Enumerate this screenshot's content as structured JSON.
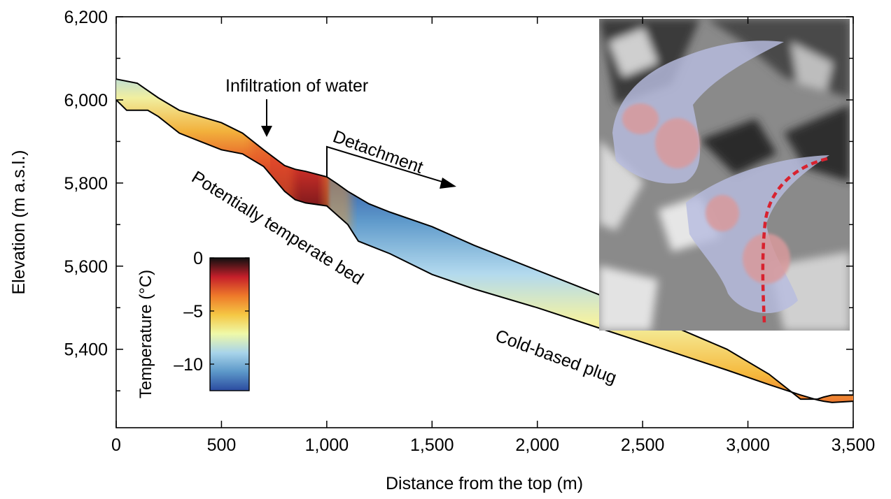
{
  "chart_data": {
    "type": "area",
    "title": "",
    "xlabel": "Distance from the top (m)",
    "ylabel": "Elevation (m a.s.l.)",
    "xlim": [
      0,
      3500
    ],
    "ylim": [
      5260,
      6200
    ],
    "x_ticks": [
      0,
      500,
      1000,
      1500,
      2000,
      2500,
      3000,
      3500
    ],
    "x_tick_labels": [
      "0",
      "500",
      "1,000",
      "1,500",
      "2,000",
      "2,500",
      "3,000",
      "3,500"
    ],
    "y_ticks": [
      5400,
      5600,
      5800,
      6000,
      6200
    ],
    "y_tick_labels": [
      "5,400",
      "5,600",
      "5,800",
      "6,000",
      "6,200"
    ],
    "grid": false,
    "series": [
      {
        "role": "glacier-surface",
        "x": [
          0,
          100,
          200,
          300,
          400,
          500,
          600,
          700,
          800,
          850,
          900,
          1000,
          1050,
          1100,
          1200,
          1300,
          1500,
          1700,
          2000,
          2300,
          2600,
          2900,
          3100,
          3250,
          3330,
          3360,
          3400,
          3500
        ],
        "y": [
          6050,
          6040,
          6005,
          5975,
          5960,
          5945,
          5920,
          5880,
          5842,
          5833,
          5828,
          5815,
          5798,
          5780,
          5750,
          5730,
          5695,
          5650,
          5590,
          5530,
          5465,
          5400,
          5340,
          5280,
          5280,
          5285,
          5290,
          5290
        ]
      },
      {
        "role": "glacier-bed",
        "x": [
          0,
          50,
          150,
          200,
          300,
          400,
          500,
          600,
          700,
          800,
          850,
          900,
          1000,
          1100,
          1150,
          1200,
          1300,
          1500,
          1700,
          2000,
          2300,
          2600,
          2900,
          3100,
          3250,
          3330,
          3360,
          3400,
          3500
        ],
        "y": [
          6000,
          5975,
          5975,
          5960,
          5920,
          5900,
          5880,
          5870,
          5840,
          5780,
          5760,
          5752,
          5745,
          5700,
          5660,
          5650,
          5630,
          5580,
          5545,
          5500,
          5450,
          5400,
          5350,
          5315,
          5290,
          5278,
          5275,
          5272,
          5275
        ]
      }
    ],
    "colorbar": {
      "label": "Temperature (°C)",
      "range": [
        -12.5,
        0
      ],
      "ticks": [
        0,
        -5,
        -10
      ],
      "tick_labels": [
        "0",
        "–5",
        "–10"
      ],
      "colors": [
        "#101010",
        "#c51f2a",
        "#ee7a2a",
        "#f5c744",
        "#eff9a8",
        "#a8d4ea",
        "#5c98c9",
        "#2b4ba0"
      ]
    },
    "annotations": {
      "infiltration": "Infiltration of water",
      "detachment": "Detachment",
      "temperate_bed": "Potentially temperate bed",
      "cold_plug": "Cold-based plug"
    },
    "inset": {
      "type": "aerial-image",
      "position": "top-right",
      "overlay_colors": [
        "#b7bcdf",
        "#d99a9c"
      ],
      "marker_color": "#d8222f"
    }
  }
}
